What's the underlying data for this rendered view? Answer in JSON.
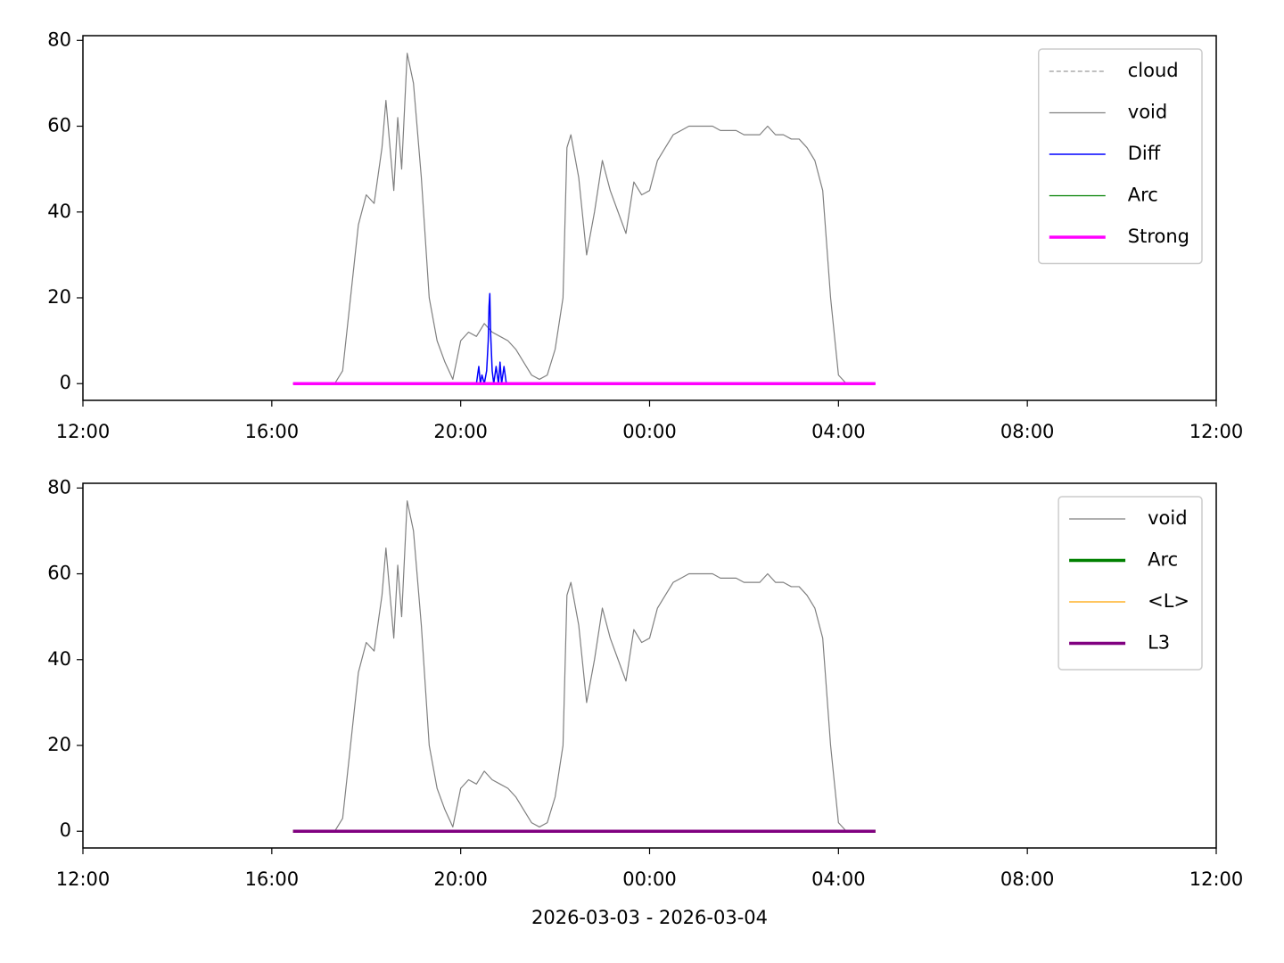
{
  "chart_data": [
    {
      "type": "line",
      "legend": "upper right",
      "xlim": [
        "2026-03-03 12:00",
        "2026-03-04 12:00"
      ],
      "xticks": [
        {
          "value": "2026-03-03 12:00",
          "label": "12:00"
        },
        {
          "value": "2026-03-03 16:00",
          "label": "16:00"
        },
        {
          "value": "2026-03-03 20:00",
          "label": "20:00"
        },
        {
          "value": "2026-03-04 00:00",
          "label": "00:00"
        },
        {
          "value": "2026-03-04 04:00",
          "label": "04:00"
        },
        {
          "value": "2026-03-04 08:00",
          "label": "08:00"
        },
        {
          "value": "2026-03-04 12:00",
          "label": "12:00"
        }
      ],
      "ylim": [
        -3.9,
        81.1
      ],
      "yticks": [
        0,
        20,
        40,
        60,
        80
      ],
      "series": [
        {
          "name": "cloud",
          "color": "#808080",
          "linewidth": 1,
          "linestyle": "dashed",
          "x": [
            "2026-03-03 16:27",
            "2026-03-04 04:47"
          ],
          "values": [
            0,
            0
          ]
        },
        {
          "name": "void",
          "color": "#808080",
          "linewidth": 1.2,
          "linestyle": "solid",
          "x": [
            "2026-03-03 16:27",
            "2026-03-03 17:20",
            "2026-03-03 17:30",
            "2026-03-03 17:40",
            "2026-03-03 17:50",
            "2026-03-03 18:00",
            "2026-03-03 18:10",
            "2026-03-03 18:20",
            "2026-03-03 18:25",
            "2026-03-03 18:35",
            "2026-03-03 18:40",
            "2026-03-03 18:45",
            "2026-03-03 18:52",
            "2026-03-03 19:00",
            "2026-03-03 19:10",
            "2026-03-03 19:20",
            "2026-03-03 19:30",
            "2026-03-03 19:40",
            "2026-03-03 19:50",
            "2026-03-03 20:00",
            "2026-03-03 20:10",
            "2026-03-03 20:20",
            "2026-03-03 20:30",
            "2026-03-03 20:40",
            "2026-03-03 20:50",
            "2026-03-03 21:00",
            "2026-03-03 21:10",
            "2026-03-03 21:20",
            "2026-03-03 21:30",
            "2026-03-03 21:40",
            "2026-03-03 21:50",
            "2026-03-03 22:00",
            "2026-03-03 22:10",
            "2026-03-03 22:15",
            "2026-03-03 22:20",
            "2026-03-03 22:30",
            "2026-03-03 22:40",
            "2026-03-03 22:50",
            "2026-03-03 23:00",
            "2026-03-03 23:10",
            "2026-03-03 23:20",
            "2026-03-03 23:30",
            "2026-03-03 23:40",
            "2026-03-03 23:50",
            "2026-03-04 00:00",
            "2026-03-04 00:10",
            "2026-03-04 00:20",
            "2026-03-04 00:30",
            "2026-03-04 00:40",
            "2026-03-04 00:50",
            "2026-03-04 01:00",
            "2026-03-04 01:10",
            "2026-03-04 01:20",
            "2026-03-04 01:30",
            "2026-03-04 01:40",
            "2026-03-04 01:50",
            "2026-03-04 02:00",
            "2026-03-04 02:10",
            "2026-03-04 02:20",
            "2026-03-04 02:30",
            "2026-03-04 02:40",
            "2026-03-04 02:50",
            "2026-03-04 03:00",
            "2026-03-04 03:10",
            "2026-03-04 03:20",
            "2026-03-04 03:30",
            "2026-03-04 03:40",
            "2026-03-04 03:50",
            "2026-03-04 04:00",
            "2026-03-04 04:10",
            "2026-03-04 04:47"
          ],
          "values": [
            0,
            0,
            3,
            20,
            37,
            44,
            42,
            55,
            66,
            45,
            62,
            50,
            77,
            70,
            48,
            20,
            10,
            5,
            1,
            10,
            12,
            11,
            14,
            12,
            11,
            10,
            8,
            5,
            2,
            1,
            2,
            8,
            20,
            55,
            58,
            48,
            30,
            40,
            52,
            45,
            40,
            35,
            47,
            44,
            45,
            52,
            55,
            58,
            59,
            60,
            60,
            60,
            60,
            59,
            59,
            59,
            58,
            58,
            58,
            60,
            58,
            58,
            57,
            57,
            55,
            52,
            45,
            20,
            2,
            0,
            0
          ]
        },
        {
          "name": "Diff",
          "color": "#0000ff",
          "linewidth": 1.5,
          "linestyle": "solid",
          "x": [
            "2026-03-03 20:20",
            "2026-03-03 20:23",
            "2026-03-03 20:25",
            "2026-03-03 20:27",
            "2026-03-03 20:30",
            "2026-03-03 20:33",
            "2026-03-03 20:35",
            "2026-03-03 20:36",
            "2026-03-03 20:37",
            "2026-03-03 20:38",
            "2026-03-03 20:40",
            "2026-03-03 20:42",
            "2026-03-03 20:45",
            "2026-03-03 20:48",
            "2026-03-03 20:50",
            "2026-03-03 20:52",
            "2026-03-03 20:55",
            "2026-03-03 20:58",
            "2026-03-03 21:00"
          ],
          "values": [
            0,
            4,
            0,
            2,
            0,
            3,
            10,
            18,
            21,
            12,
            3,
            0,
            4,
            0,
            5,
            0,
            4,
            0,
            0
          ]
        },
        {
          "name": "Arc",
          "color": "#008000",
          "linewidth": 1.2,
          "linestyle": "solid",
          "x": [
            "2026-03-03 16:27",
            "2026-03-04 04:47"
          ],
          "values": [
            0,
            0
          ]
        },
        {
          "name": "Strong",
          "color": "#ff00ff",
          "linewidth": 3.5,
          "linestyle": "solid",
          "x": [
            "2026-03-03 16:27",
            "2026-03-04 04:47"
          ],
          "values": [
            0,
            0
          ]
        }
      ]
    },
    {
      "type": "line",
      "legend": "upper right",
      "xlabel": "2026-03-03 - 2026-03-04",
      "xlim": [
        "2026-03-03 12:00",
        "2026-03-04 12:00"
      ],
      "xticks": [
        {
          "value": "2026-03-03 12:00",
          "label": "12:00"
        },
        {
          "value": "2026-03-03 16:00",
          "label": "16:00"
        },
        {
          "value": "2026-03-03 20:00",
          "label": "20:00"
        },
        {
          "value": "2026-03-04 00:00",
          "label": "00:00"
        },
        {
          "value": "2026-03-04 04:00",
          "label": "04:00"
        },
        {
          "value": "2026-03-04 08:00",
          "label": "08:00"
        },
        {
          "value": "2026-03-04 12:00",
          "label": "12:00"
        }
      ],
      "ylim": [
        -3.9,
        81.1
      ],
      "yticks": [
        0,
        20,
        40,
        60,
        80
      ],
      "series": [
        {
          "name": "void",
          "color": "#808080",
          "linewidth": 1.2,
          "linestyle": "solid",
          "x": [
            "2026-03-03 16:27",
            "2026-03-03 17:20",
            "2026-03-03 17:30",
            "2026-03-03 17:40",
            "2026-03-03 17:50",
            "2026-03-03 18:00",
            "2026-03-03 18:10",
            "2026-03-03 18:20",
            "2026-03-03 18:25",
            "2026-03-03 18:35",
            "2026-03-03 18:40",
            "2026-03-03 18:45",
            "2026-03-03 18:52",
            "2026-03-03 19:00",
            "2026-03-03 19:10",
            "2026-03-03 19:20",
            "2026-03-03 19:30",
            "2026-03-03 19:40",
            "2026-03-03 19:50",
            "2026-03-03 20:00",
            "2026-03-03 20:10",
            "2026-03-03 20:20",
            "2026-03-03 20:30",
            "2026-03-03 20:40",
            "2026-03-03 20:50",
            "2026-03-03 21:00",
            "2026-03-03 21:10",
            "2026-03-03 21:20",
            "2026-03-03 21:30",
            "2026-03-03 21:40",
            "2026-03-03 21:50",
            "2026-03-03 22:00",
            "2026-03-03 22:10",
            "2026-03-03 22:15",
            "2026-03-03 22:20",
            "2026-03-03 22:30",
            "2026-03-03 22:40",
            "2026-03-03 22:50",
            "2026-03-03 23:00",
            "2026-03-03 23:10",
            "2026-03-03 23:20",
            "2026-03-03 23:30",
            "2026-03-03 23:40",
            "2026-03-03 23:50",
            "2026-03-04 00:00",
            "2026-03-04 00:10",
            "2026-03-04 00:20",
            "2026-03-04 00:30",
            "2026-03-04 00:40",
            "2026-03-04 00:50",
            "2026-03-04 01:00",
            "2026-03-04 01:10",
            "2026-03-04 01:20",
            "2026-03-04 01:30",
            "2026-03-04 01:40",
            "2026-03-04 01:50",
            "2026-03-04 02:00",
            "2026-03-04 02:10",
            "2026-03-04 02:20",
            "2026-03-04 02:30",
            "2026-03-04 02:40",
            "2026-03-04 02:50",
            "2026-03-04 03:00",
            "2026-03-04 03:10",
            "2026-03-04 03:20",
            "2026-03-04 03:30",
            "2026-03-04 03:40",
            "2026-03-04 03:50",
            "2026-03-04 04:00",
            "2026-03-04 04:10",
            "2026-03-04 04:47"
          ],
          "values": [
            0,
            0,
            3,
            20,
            37,
            44,
            42,
            55,
            66,
            45,
            62,
            50,
            77,
            70,
            48,
            20,
            10,
            5,
            1,
            10,
            12,
            11,
            14,
            12,
            11,
            10,
            8,
            5,
            2,
            1,
            2,
            8,
            20,
            55,
            58,
            48,
            30,
            40,
            52,
            45,
            40,
            35,
            47,
            44,
            45,
            52,
            55,
            58,
            59,
            60,
            60,
            60,
            60,
            59,
            59,
            59,
            58,
            58,
            58,
            60,
            58,
            58,
            57,
            57,
            55,
            52,
            45,
            20,
            2,
            0,
            0
          ]
        },
        {
          "name": "Arc",
          "color": "#008000",
          "linewidth": 3.5,
          "linestyle": "solid",
          "x": [
            "2026-03-03 16:27",
            "2026-03-04 04:47"
          ],
          "values": [
            0,
            0
          ]
        },
        {
          "name": "<L>",
          "color": "#ffa500",
          "linewidth": 1.2,
          "linestyle": "solid",
          "x": [
            "2026-03-03 16:27",
            "2026-03-04 04:47"
          ],
          "values": [
            0,
            0
          ]
        },
        {
          "name": "L3",
          "color": "#800080",
          "linewidth": 3.5,
          "linestyle": "solid",
          "x": [
            "2026-03-03 16:27",
            "2026-03-04 04:47"
          ],
          "values": [
            0,
            0
          ]
        }
      ]
    }
  ]
}
